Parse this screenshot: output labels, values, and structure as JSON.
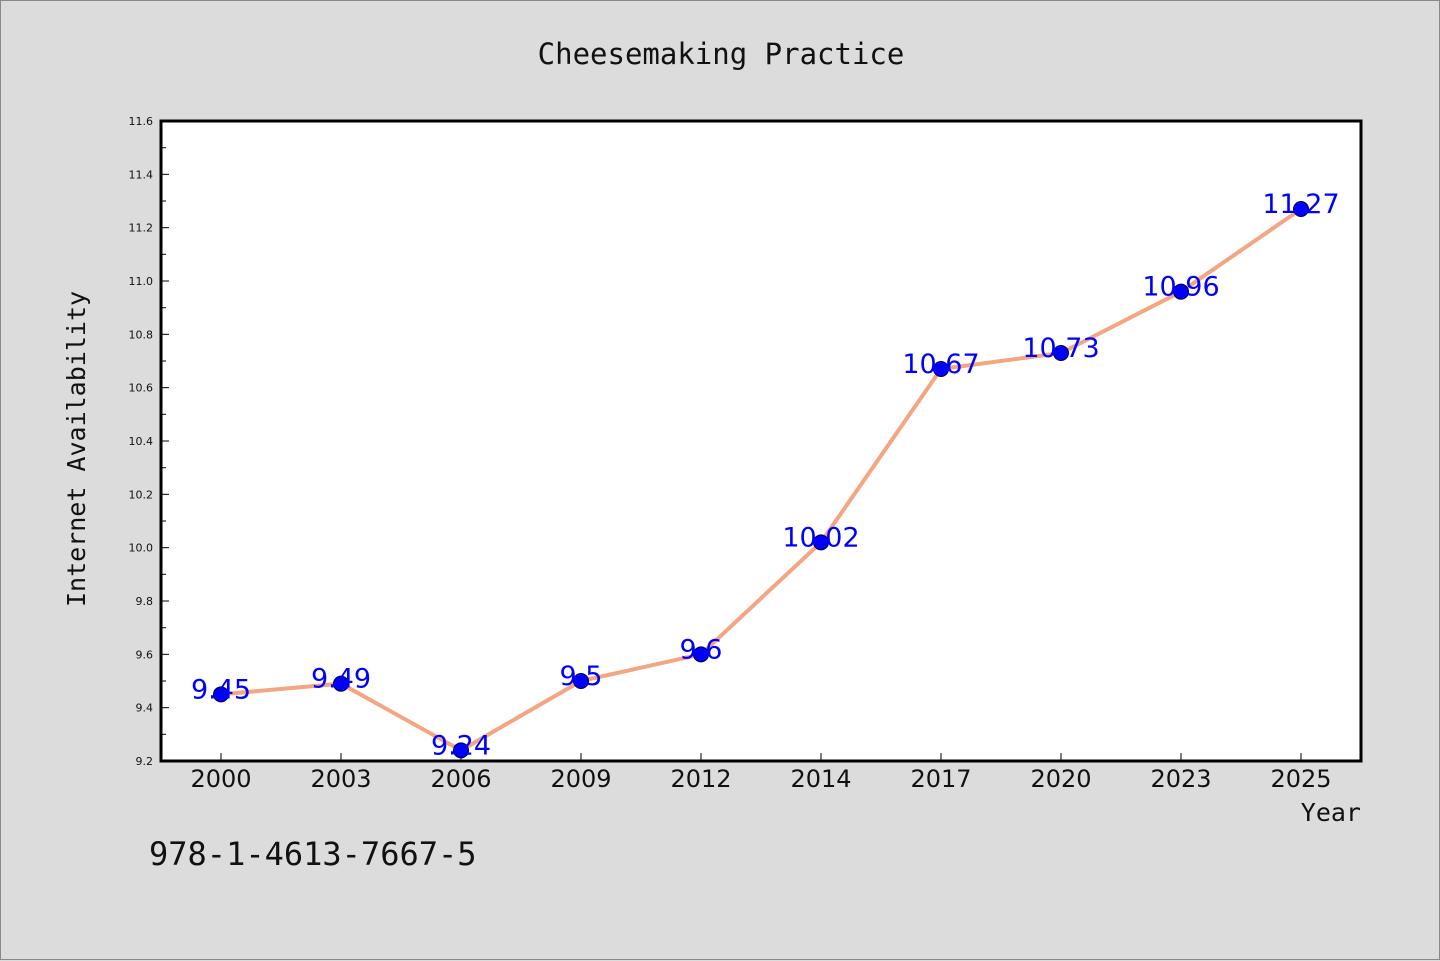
{
  "chart_data": {
    "type": "line",
    "title": "Cheesemaking Practice",
    "xlabel": "Year",
    "ylabel": "Internet Availability",
    "categories": [
      "2000",
      "2003",
      "2006",
      "2009",
      "2012",
      "2014",
      "2017",
      "2020",
      "2023",
      "2025"
    ],
    "series": [
      {
        "values": [
          9.45,
          9.49,
          9.24,
          9.5,
          9.6,
          10.02,
          10.67,
          10.73,
          10.96,
          11.27
        ],
        "line_color": "#f4a582",
        "marker_color": "#0000ff",
        "label_color": "#0000ff"
      }
    ],
    "data_labels": [
      "9.45",
      "9.49",
      "9.24",
      "9.5",
      "9.6",
      "10.02",
      "10.67",
      "10.73",
      "10.96",
      "11.27"
    ],
    "yticks": [
      "9.2",
      "9.4",
      "9.6",
      "9.8",
      "10.0",
      "10.2",
      "10.4",
      "10.6",
      "10.8",
      "11.0",
      "11.2",
      "11.4",
      "11.6"
    ],
    "ylim": [
      9.2,
      11.6
    ],
    "grid": false,
    "legend": "none"
  },
  "footer": {
    "isbn": "978-1-4613-7667-5"
  }
}
